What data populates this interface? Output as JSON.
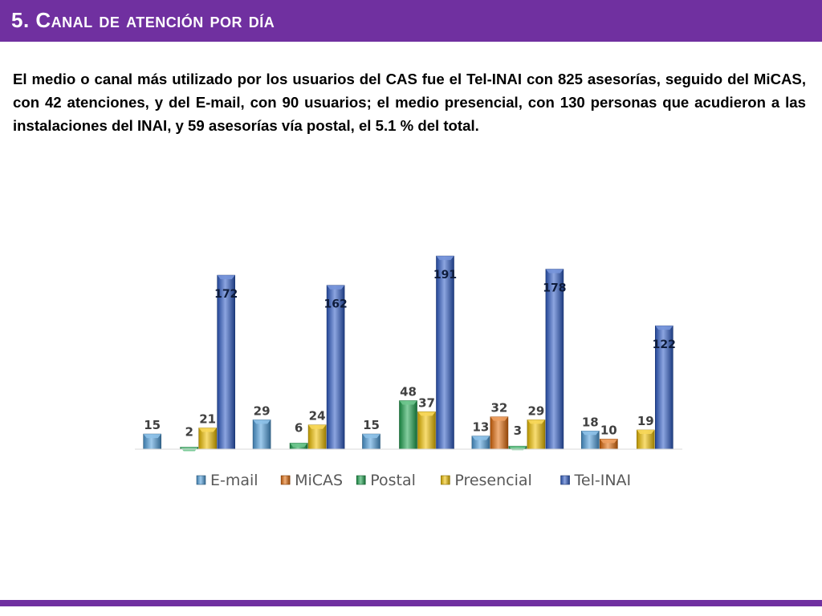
{
  "slide": {
    "title": "5. Canal de atención por día",
    "paragraph": "El medio o canal más utilizado por los usuarios del CAS fue el Tel-INAI con 825 asesorías, seguido del MiCAS, con 42 atenciones, y del E-mail, con 90 usuarios; el medio presencial, con 130 personas que acudieron a las instalaciones del INAI, y 59 asesorías vía postal, el 5.1 % del total."
  },
  "colors": {
    "accent_bar": "#7030a0",
    "email": "#4f9fdc",
    "micas": "#e46c0a",
    "postal": "#1fa550",
    "presencial": "#f2c200",
    "telinai": "#2e5cc6"
  },
  "chart_data": {
    "type": "bar",
    "title": "",
    "xlabel": "",
    "ylabel": "",
    "legend_position": "bottom",
    "grid": false,
    "categories": [
      "",
      "",
      "",
      "",
      ""
    ],
    "ylim": [
      0,
      200
    ],
    "series": [
      {
        "name": "E-mail",
        "color": "#4f9fdc",
        "values": [
          15,
          29,
          15,
          13,
          18
        ]
      },
      {
        "name": "MiCAS",
        "color": "#e46c0a",
        "values": [
          null,
          null,
          null,
          32,
          10
        ]
      },
      {
        "name": "Postal",
        "color": "#1fa550",
        "values": [
          2,
          6,
          48,
          3,
          null
        ]
      },
      {
        "name": "Presencial",
        "color": "#f2c200",
        "values": [
          21,
          24,
          37,
          29,
          19
        ]
      },
      {
        "name": "Tel-INAI",
        "color": "#2e5cc6",
        "values": [
          172,
          162,
          191,
          178,
          122
        ]
      }
    ]
  }
}
